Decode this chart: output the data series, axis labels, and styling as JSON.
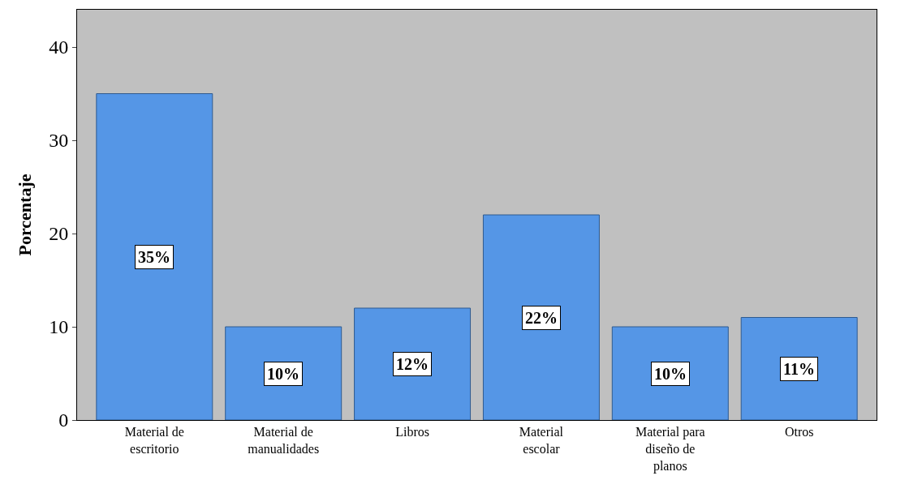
{
  "chart_data": {
    "type": "bar",
    "ylabel": "Porcentaje",
    "categories": [
      "Material de escritorio",
      "Material de manualidades",
      "Libros",
      "Material escolar",
      "Material para diseño de planos",
      "Otros"
    ],
    "values": [
      35,
      10,
      12,
      22,
      10,
      11
    ],
    "value_labels": [
      "35%",
      "10%",
      "12%",
      "22%",
      "10%",
      "11%"
    ],
    "color": "#5596e6",
    "ylim": [
      0,
      44
    ],
    "yticks": [
      0,
      10,
      20,
      30,
      40
    ],
    "grid": false,
    "legend": false
  }
}
